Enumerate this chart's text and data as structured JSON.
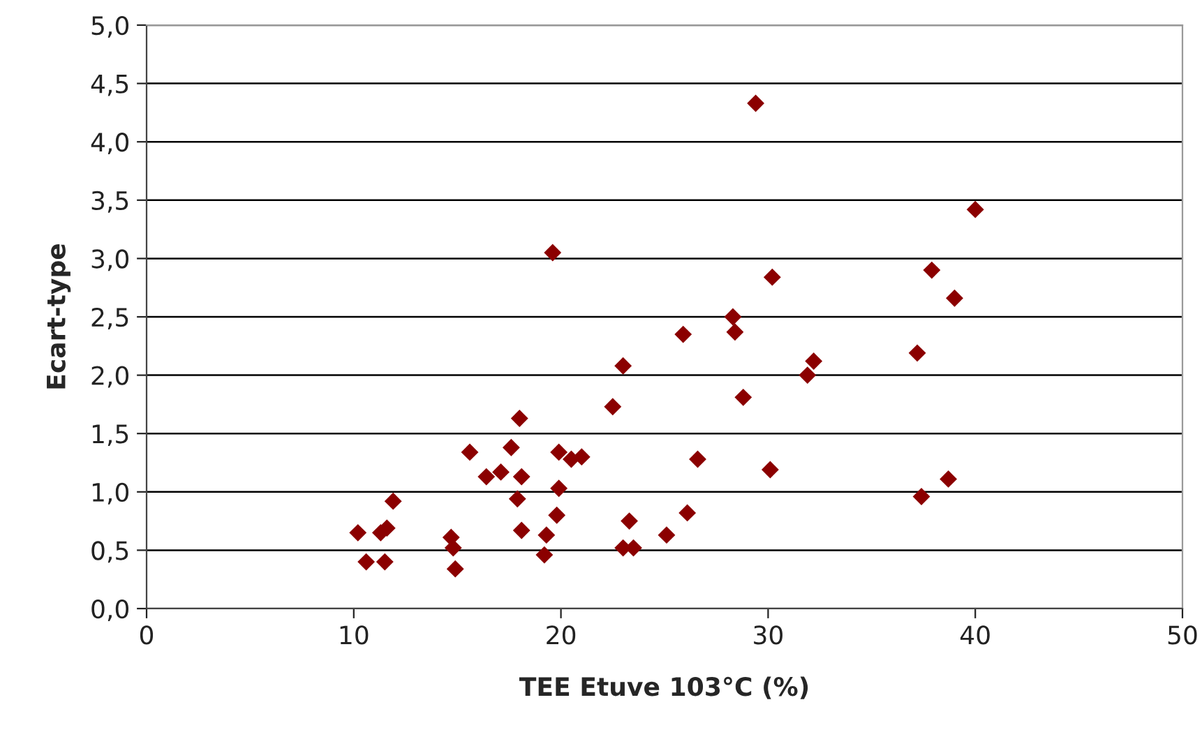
{
  "chart_data": {
    "type": "scatter",
    "xlabel": "TEE Etuve 103°C (%)",
    "ylabel": "Ecart-type",
    "x": [
      10.2,
      10.6,
      11.3,
      11.6,
      11.9,
      11.5,
      14.7,
      14.8,
      14.9,
      15.6,
      16.4,
      17.1,
      17.6,
      18.0,
      17.9,
      18.1,
      18.1,
      19.2,
      19.3,
      19.6,
      19.8,
      19.9,
      19.9,
      20.5,
      21.0,
      22.5,
      23.0,
      23.0,
      23.3,
      23.5,
      25.1,
      25.9,
      26.1,
      26.6,
      28.3,
      28.4,
      28.8,
      29.4,
      30.1,
      30.2,
      31.9,
      32.2,
      37.2,
      37.4,
      37.9,
      38.7,
      39.0,
      40.0
    ],
    "series": [
      {
        "color": "#8b0000",
        "values": [
          0.65,
          0.4,
          0.65,
          0.69,
          0.92,
          0.4,
          0.61,
          0.52,
          0.34,
          1.34,
          1.13,
          1.17,
          1.38,
          1.63,
          0.94,
          1.13,
          0.67,
          0.46,
          0.63,
          3.05,
          0.8,
          1.34,
          1.03,
          1.28,
          1.3,
          1.73,
          2.08,
          0.52,
          0.75,
          0.52,
          0.63,
          2.35,
          0.82,
          1.28,
          2.5,
          2.37,
          1.81,
          4.33,
          1.19,
          2.84,
          2.0,
          2.12,
          2.19,
          0.96,
          2.9,
          1.11,
          2.66,
          3.42
        ]
      }
    ],
    "xlim": [
      0,
      50
    ],
    "xticks": [
      0,
      10,
      20,
      30,
      40,
      50
    ],
    "ylim": [
      0,
      5
    ],
    "yticks": [
      {
        "value": 0,
        "label": "0,0"
      },
      {
        "value": 0.5,
        "label": "0,5"
      },
      {
        "value": 1,
        "label": "1,0"
      },
      {
        "value": 1.5,
        "label": "1,5"
      },
      {
        "value": 2,
        "label": "2,0"
      },
      {
        "value": 2.5,
        "label": "2,5"
      },
      {
        "value": 3,
        "label": "3,0"
      },
      {
        "value": 3.5,
        "label": "3,5"
      },
      {
        "value": 4,
        "label": "4,0"
      },
      {
        "value": 4.5,
        "label": "4,5"
      },
      {
        "value": 5,
        "label": "5,0"
      }
    ],
    "grid": "y",
    "marker": "diamond"
  }
}
